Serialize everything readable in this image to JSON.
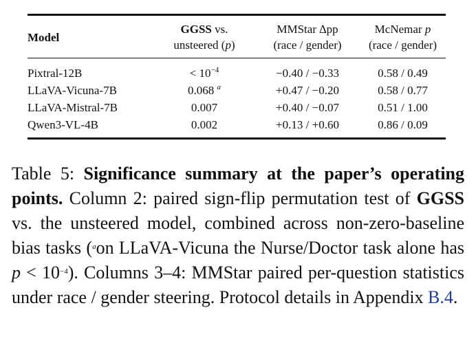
{
  "table": {
    "headers": {
      "model": "Model",
      "ggss_bold": "GGSS",
      "ggss_rest": "vs.",
      "ggss_line2_pre": "unsteered (",
      "ggss_line2_p": "p",
      "ggss_line2_post": ")",
      "mmstar_line1": "MMStar ∆pp",
      "mmstar_line2": "(race / gender)",
      "mcnemar_line1_pre": "McNemar",
      "mcnemar_line1_p": "p",
      "mcnemar_line2": "(race / gender)"
    },
    "rows": [
      {
        "model": "Pixtral-12B",
        "ggss_main": "< 10",
        "ggss_sup": "−4",
        "mmstar": "−0.40 / −0.33",
        "mcnemar": "0.58 / 0.49"
      },
      {
        "model": "LLaVA-Vicuna-7B",
        "ggss_main": "0.068",
        "ggss_sup": "a",
        "mmstar": "+0.47 / −0.20",
        "mcnemar": "0.58 / 0.77"
      },
      {
        "model": "LLaVA-Mistral-7B",
        "ggss_main": "0.007",
        "ggss_sup": "",
        "mmstar": "+0.40 / −0.07",
        "mcnemar": "0.51 / 1.00"
      },
      {
        "model": "Qwen3-VL-4B",
        "ggss_main": "0.002",
        "ggss_sup": "",
        "mmstar": "+0.13 / +0.60",
        "mcnemar": "0.86 / 0.09"
      }
    ]
  },
  "caption": {
    "label": "Table 5:",
    "bold_title": "Significance summary at the paper’s operating points.",
    "t1": "Column 2: paired sign-flip permutation test of",
    "ggss": "GGSS",
    "t2": "vs. the unsteered model, combined across non-zero-baseline bias tasks (",
    "note_sup": "a",
    "t3": "on LLaVA-Vicuna the Nurse/Doctor task alone has",
    "p_var": "p",
    "p_rel": "< 10",
    "p_sup": "−4",
    "t4": "). Columns 3–4: MMStar paired per-question statistics under race / gender steering. Protocol details in Appendix",
    "link": "B.4",
    "t5": "."
  }
}
